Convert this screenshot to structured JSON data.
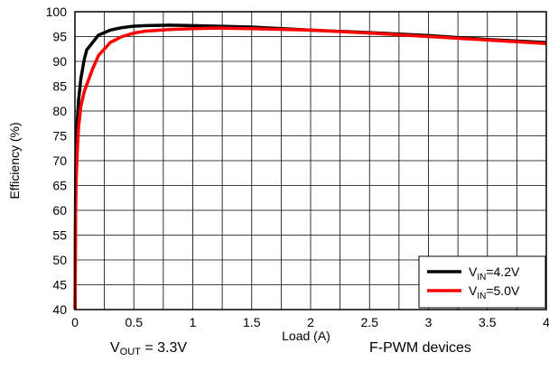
{
  "chart_data": {
    "type": "line",
    "xlabel": "Load (A)",
    "ylabel": "Efficiency (%)",
    "xlim": [
      0,
      4
    ],
    "ylim": [
      40,
      100
    ],
    "x_ticks": [
      0,
      0.5,
      1,
      1.5,
      2,
      2.5,
      3,
      3.5,
      4
    ],
    "x_tick_labels": [
      "0",
      "0.5",
      "1",
      "1.5",
      "2",
      "2.5",
      "3",
      "3.5",
      "4"
    ],
    "y_ticks": [
      40,
      45,
      50,
      55,
      60,
      65,
      70,
      75,
      80,
      85,
      90,
      95,
      100
    ],
    "y_tick_labels": [
      "40",
      "45",
      "50",
      "55",
      "60",
      "65",
      "70",
      "75",
      "80",
      "85",
      "90",
      "95",
      "100"
    ],
    "grid": true,
    "legend_position": "bottom-right",
    "series": [
      {
        "name": "VIN=4.2V",
        "legend_main": "V",
        "legend_sub": "IN",
        "legend_rest": "=4.2V",
        "color": "#000000",
        "points": [
          [
            0.001,
            40
          ],
          [
            0.005,
            62
          ],
          [
            0.01,
            72
          ],
          [
            0.02,
            78
          ],
          [
            0.03,
            82
          ],
          [
            0.05,
            86.5
          ],
          [
            0.08,
            90.5
          ],
          [
            0.1,
            92.3
          ],
          [
            0.15,
            93.8
          ],
          [
            0.2,
            95.3
          ],
          [
            0.3,
            96.3
          ],
          [
            0.4,
            96.8
          ],
          [
            0.5,
            97.1
          ],
          [
            0.6,
            97.2
          ],
          [
            0.8,
            97.3
          ],
          [
            1.0,
            97.2
          ],
          [
            1.2,
            97.1
          ],
          [
            1.5,
            96.9
          ],
          [
            2.0,
            96.3
          ],
          [
            2.5,
            95.8
          ],
          [
            3.0,
            95.2
          ],
          [
            3.5,
            94.4
          ],
          [
            4.0,
            93.8
          ]
        ]
      },
      {
        "name": "VIN=5.0V",
        "legend_main": "V",
        "legend_sub": "IN",
        "legend_rest": "=5.0V",
        "color": "#ff0000",
        "points": [
          [
            0.001,
            40
          ],
          [
            0.005,
            58
          ],
          [
            0.01,
            66
          ],
          [
            0.02,
            72
          ],
          [
            0.03,
            76.5
          ],
          [
            0.05,
            81
          ],
          [
            0.08,
            84
          ],
          [
            0.1,
            85.3
          ],
          [
            0.15,
            88.5
          ],
          [
            0.2,
            91.2
          ],
          [
            0.3,
            93.8
          ],
          [
            0.4,
            95.0
          ],
          [
            0.5,
            95.7
          ],
          [
            0.6,
            96.1
          ],
          [
            0.8,
            96.4
          ],
          [
            1.0,
            96.6
          ],
          [
            1.2,
            96.7
          ],
          [
            1.5,
            96.6
          ],
          [
            2.0,
            96.3
          ],
          [
            2.5,
            95.7
          ],
          [
            3.0,
            95.0
          ],
          [
            3.5,
            94.3
          ],
          [
            4.0,
            93.6
          ]
        ]
      }
    ],
    "annotations": {
      "vout_main": "V",
      "vout_sub": "OUT",
      "vout_rest": " = 3.3V",
      "devices": "F-PWM devices"
    }
  }
}
